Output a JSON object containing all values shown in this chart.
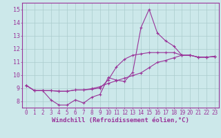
{
  "background_color": "#cce8ea",
  "grid_color": "#aacccc",
  "line_color": "#993399",
  "marker": "+",
  "xlabel": "Windchill (Refroidissement éolien,°C)",
  "xlabel_fontsize": 6.5,
  "xtick_fontsize": 5.5,
  "ytick_fontsize": 6.0,
  "xlim": [
    -0.5,
    23.5
  ],
  "ylim": [
    7.5,
    15.5
  ],
  "yticks": [
    8,
    9,
    10,
    11,
    12,
    13,
    14,
    15
  ],
  "xticks": [
    0,
    1,
    2,
    3,
    4,
    5,
    6,
    7,
    8,
    9,
    10,
    11,
    12,
    13,
    14,
    15,
    16,
    17,
    18,
    19,
    20,
    21,
    22,
    23
  ],
  "line1_x": [
    0,
    1,
    2,
    3,
    4,
    5,
    6,
    7,
    8,
    9,
    10,
    11,
    12,
    13,
    14,
    15,
    16,
    17,
    18,
    19,
    20,
    21,
    22,
    23
  ],
  "line1_y": [
    9.2,
    8.8,
    8.8,
    8.1,
    7.7,
    7.7,
    8.1,
    7.85,
    8.3,
    8.5,
    9.8,
    9.6,
    9.5,
    10.2,
    13.6,
    15.0,
    13.2,
    12.6,
    12.2,
    11.5,
    11.5,
    11.35,
    11.35,
    11.4
  ],
  "line2_x": [
    0,
    1,
    2,
    3,
    4,
    5,
    6,
    7,
    8,
    9,
    10,
    11,
    12,
    13,
    14,
    15,
    16,
    17,
    18,
    19,
    20,
    21,
    22,
    23
  ],
  "line2_y": [
    9.2,
    8.8,
    8.8,
    8.8,
    8.75,
    8.75,
    8.85,
    8.85,
    8.95,
    9.1,
    9.35,
    9.55,
    9.75,
    9.95,
    10.15,
    10.55,
    10.95,
    11.1,
    11.3,
    11.5,
    11.5,
    11.35,
    11.35,
    11.4
  ],
  "line3_x": [
    0,
    1,
    2,
    3,
    4,
    5,
    6,
    7,
    8,
    9,
    10,
    11,
    12,
    13,
    14,
    15,
    16,
    17,
    18,
    19,
    20,
    21,
    22,
    23
  ],
  "line3_y": [
    9.2,
    8.8,
    8.8,
    8.8,
    8.75,
    8.75,
    8.85,
    8.85,
    8.9,
    9.0,
    9.6,
    10.6,
    11.2,
    11.5,
    11.6,
    11.7,
    11.7,
    11.7,
    11.7,
    11.5,
    11.5,
    11.35,
    11.35,
    11.4
  ]
}
